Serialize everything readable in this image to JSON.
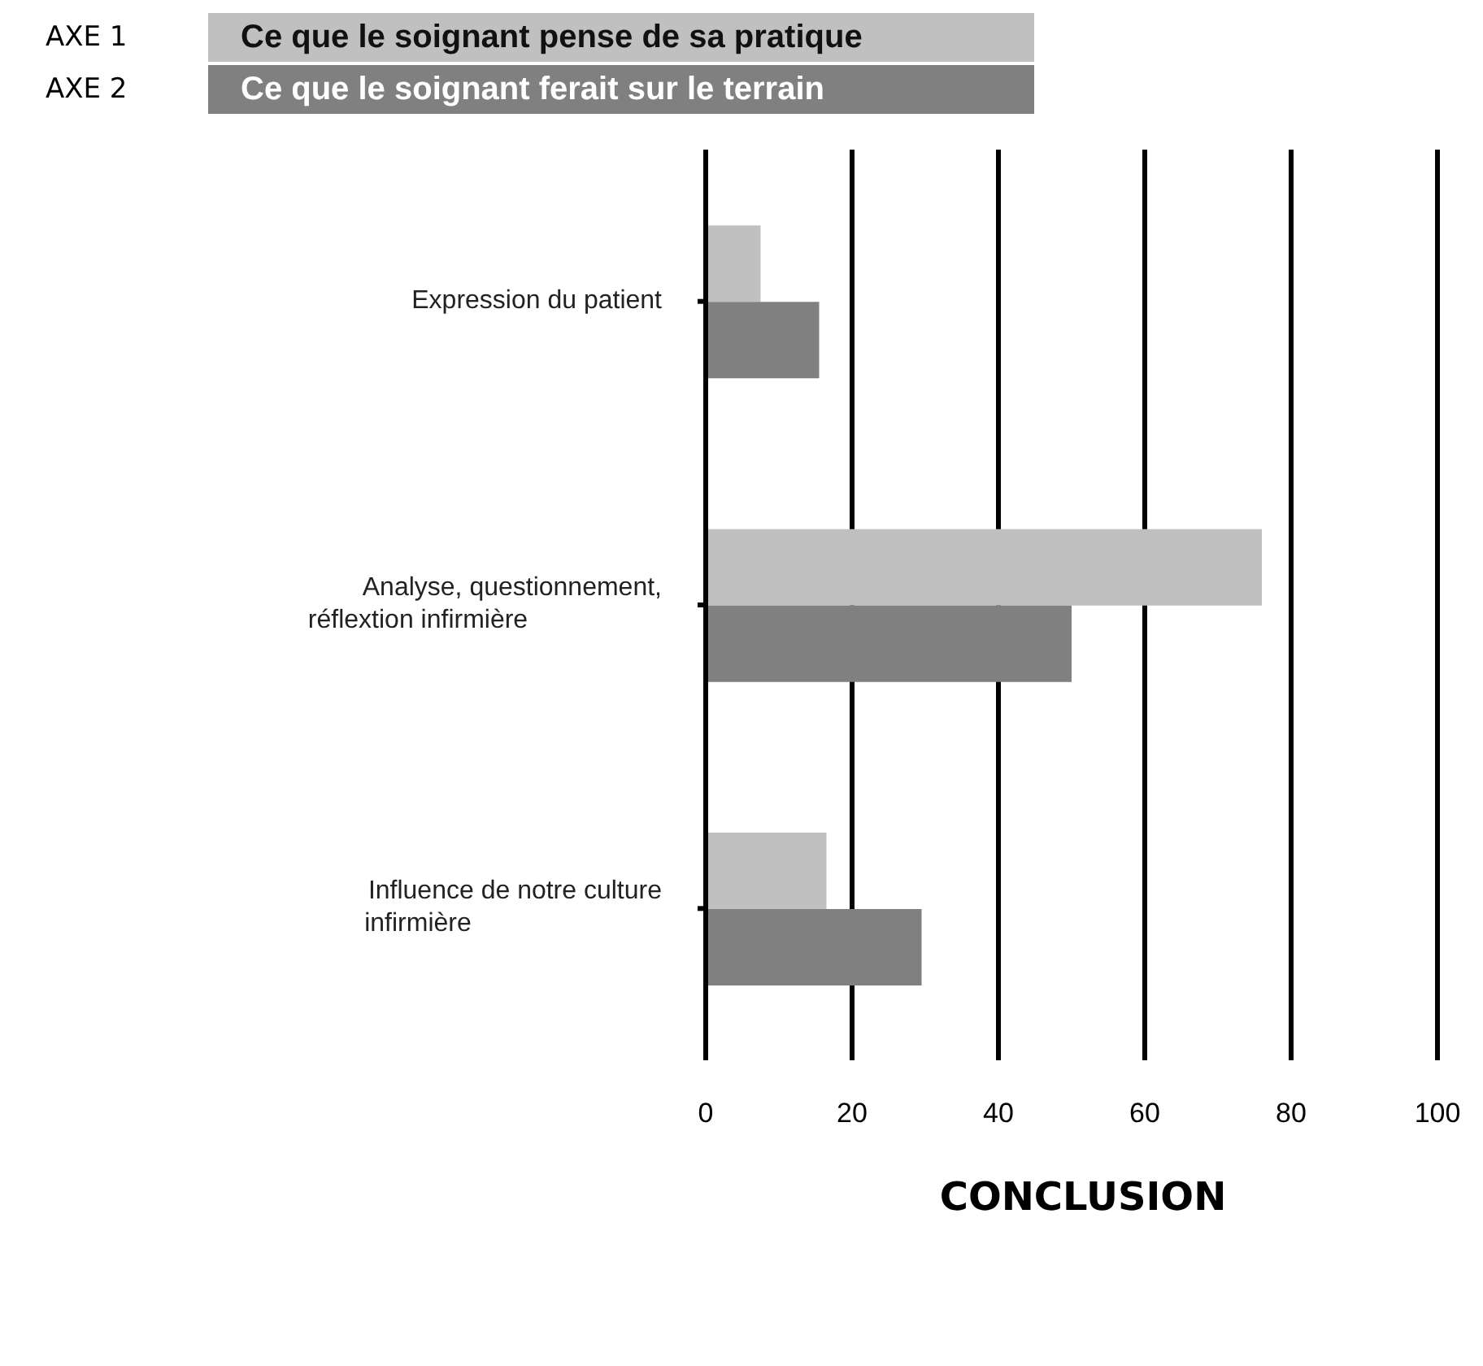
{
  "chart_data": {
    "type": "bar",
    "orientation": "horizontal",
    "title": "CONCLUSION",
    "categories": [
      "Expression du patient",
      "Analyse, questionnement, réflextion infirmière",
      "Influence de notre culture infirmière"
    ],
    "series": [
      {
        "name": "Ce que le soignant pense de sa pratique",
        "color": "#c0c0c0",
        "values": [
          7.5,
          76,
          16.5
        ]
      },
      {
        "name": "Ce que le soignant ferait sur le terrain",
        "color": "#808080",
        "values": [
          15.5,
          50,
          29.5
        ]
      }
    ],
    "annotations": [
      "AXE 1",
      "AXE 2"
    ],
    "xlim": [
      0,
      100
    ],
    "xticks": [
      0,
      20,
      40,
      60,
      80,
      100
    ],
    "grid": "x",
    "legend": "top"
  }
}
